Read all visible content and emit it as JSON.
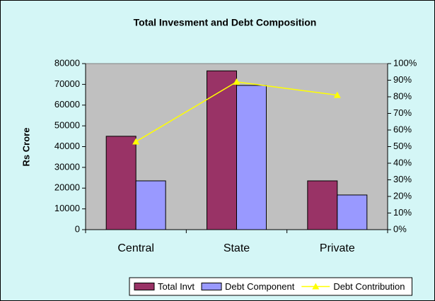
{
  "chart_data": {
    "type": "bar",
    "title": "Total Invesment and Debt Composition",
    "y_label": "Rs Crore",
    "categories": [
      "Central",
      "State",
      "Private"
    ],
    "series": [
      {
        "name": "Total Invt",
        "color": "#993366",
        "values": [
          45000,
          76500,
          23500
        ]
      },
      {
        "name": "Debt Component",
        "color": "#9999ff",
        "values": [
          23500,
          69500,
          16700
        ]
      },
      {
        "name": "Debt Contribution",
        "color": "#ffff00",
        "type": "line",
        "axis": "y2",
        "values": [
          53,
          89,
          81
        ]
      }
    ],
    "ylim": [
      0,
      80000
    ],
    "yticks": [
      0,
      10000,
      20000,
      30000,
      40000,
      50000,
      60000,
      70000,
      80000
    ],
    "y2lim": [
      0,
      100
    ],
    "y2ticks": [
      {
        "value": 0,
        "label": "0%"
      },
      {
        "value": 10,
        "label": "10%"
      },
      {
        "value": 20,
        "label": "20%"
      },
      {
        "value": 30,
        "label": "30%"
      },
      {
        "value": 40,
        "label": "40%"
      },
      {
        "value": 50,
        "label": "50%"
      },
      {
        "value": 60,
        "label": "60%"
      },
      {
        "value": 70,
        "label": "70%"
      },
      {
        "value": 80,
        "label": "80%"
      },
      {
        "value": 90,
        "label": "90%"
      },
      {
        "value": 100,
        "label": "100%"
      }
    ],
    "plot_background": "#c0c0c0",
    "legend": "bottom"
  }
}
